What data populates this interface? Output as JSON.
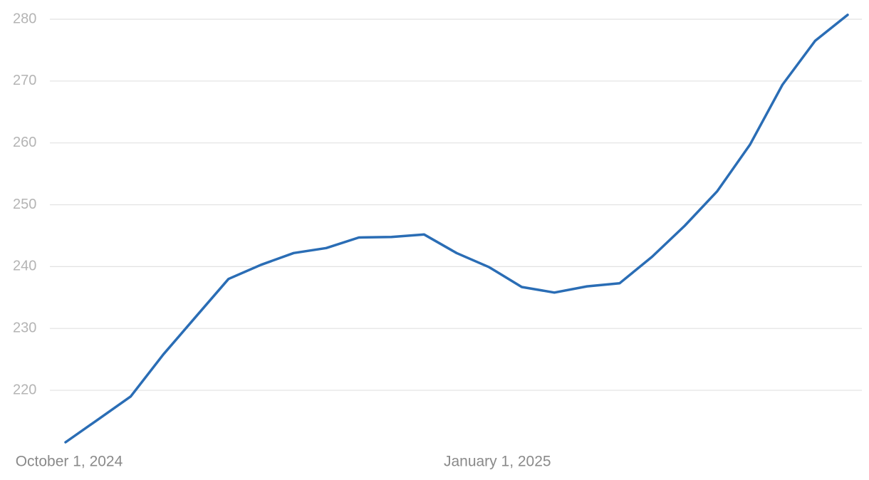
{
  "chart_data": {
    "type": "line",
    "x": [
      "2024-10-01",
      "2024-10-08",
      "2024-10-15",
      "2024-10-22",
      "2024-10-29",
      "2024-11-05",
      "2024-11-12",
      "2024-11-19",
      "2024-11-26",
      "2024-12-03",
      "2024-12-10",
      "2024-12-17",
      "2024-12-24",
      "2024-12-31",
      "2025-01-07",
      "2025-01-14",
      "2025-01-21",
      "2025-01-28",
      "2025-02-04",
      "2025-02-11",
      "2025-02-18",
      "2025-02-25",
      "2025-03-04",
      "2025-03-11",
      "2025-03-18"
    ],
    "series": [
      {
        "color": "#2a6db5",
        "values": [
          211.6,
          215.3,
          219.0,
          225.8,
          231.9,
          238.0,
          240.3,
          242.2,
          243.0,
          244.7,
          244.8,
          245.2,
          242.2,
          239.9,
          236.7,
          235.8,
          236.8,
          237.3,
          241.6,
          246.6,
          252.2,
          259.7,
          269.4,
          276.5,
          280.7
        ]
      }
    ],
    "xlim": [
      "2024-10-01",
      "2025-03-18"
    ],
    "xticks": [
      {
        "value": "2024-10-01",
        "label": "October 1, 2024"
      },
      {
        "value": "2025-01-01",
        "label": "January 1, 2025"
      }
    ],
    "ylim": [
      211,
      281
    ],
    "yticks": [
      220,
      230,
      240,
      250,
      260,
      270,
      280
    ],
    "grid": true
  }
}
